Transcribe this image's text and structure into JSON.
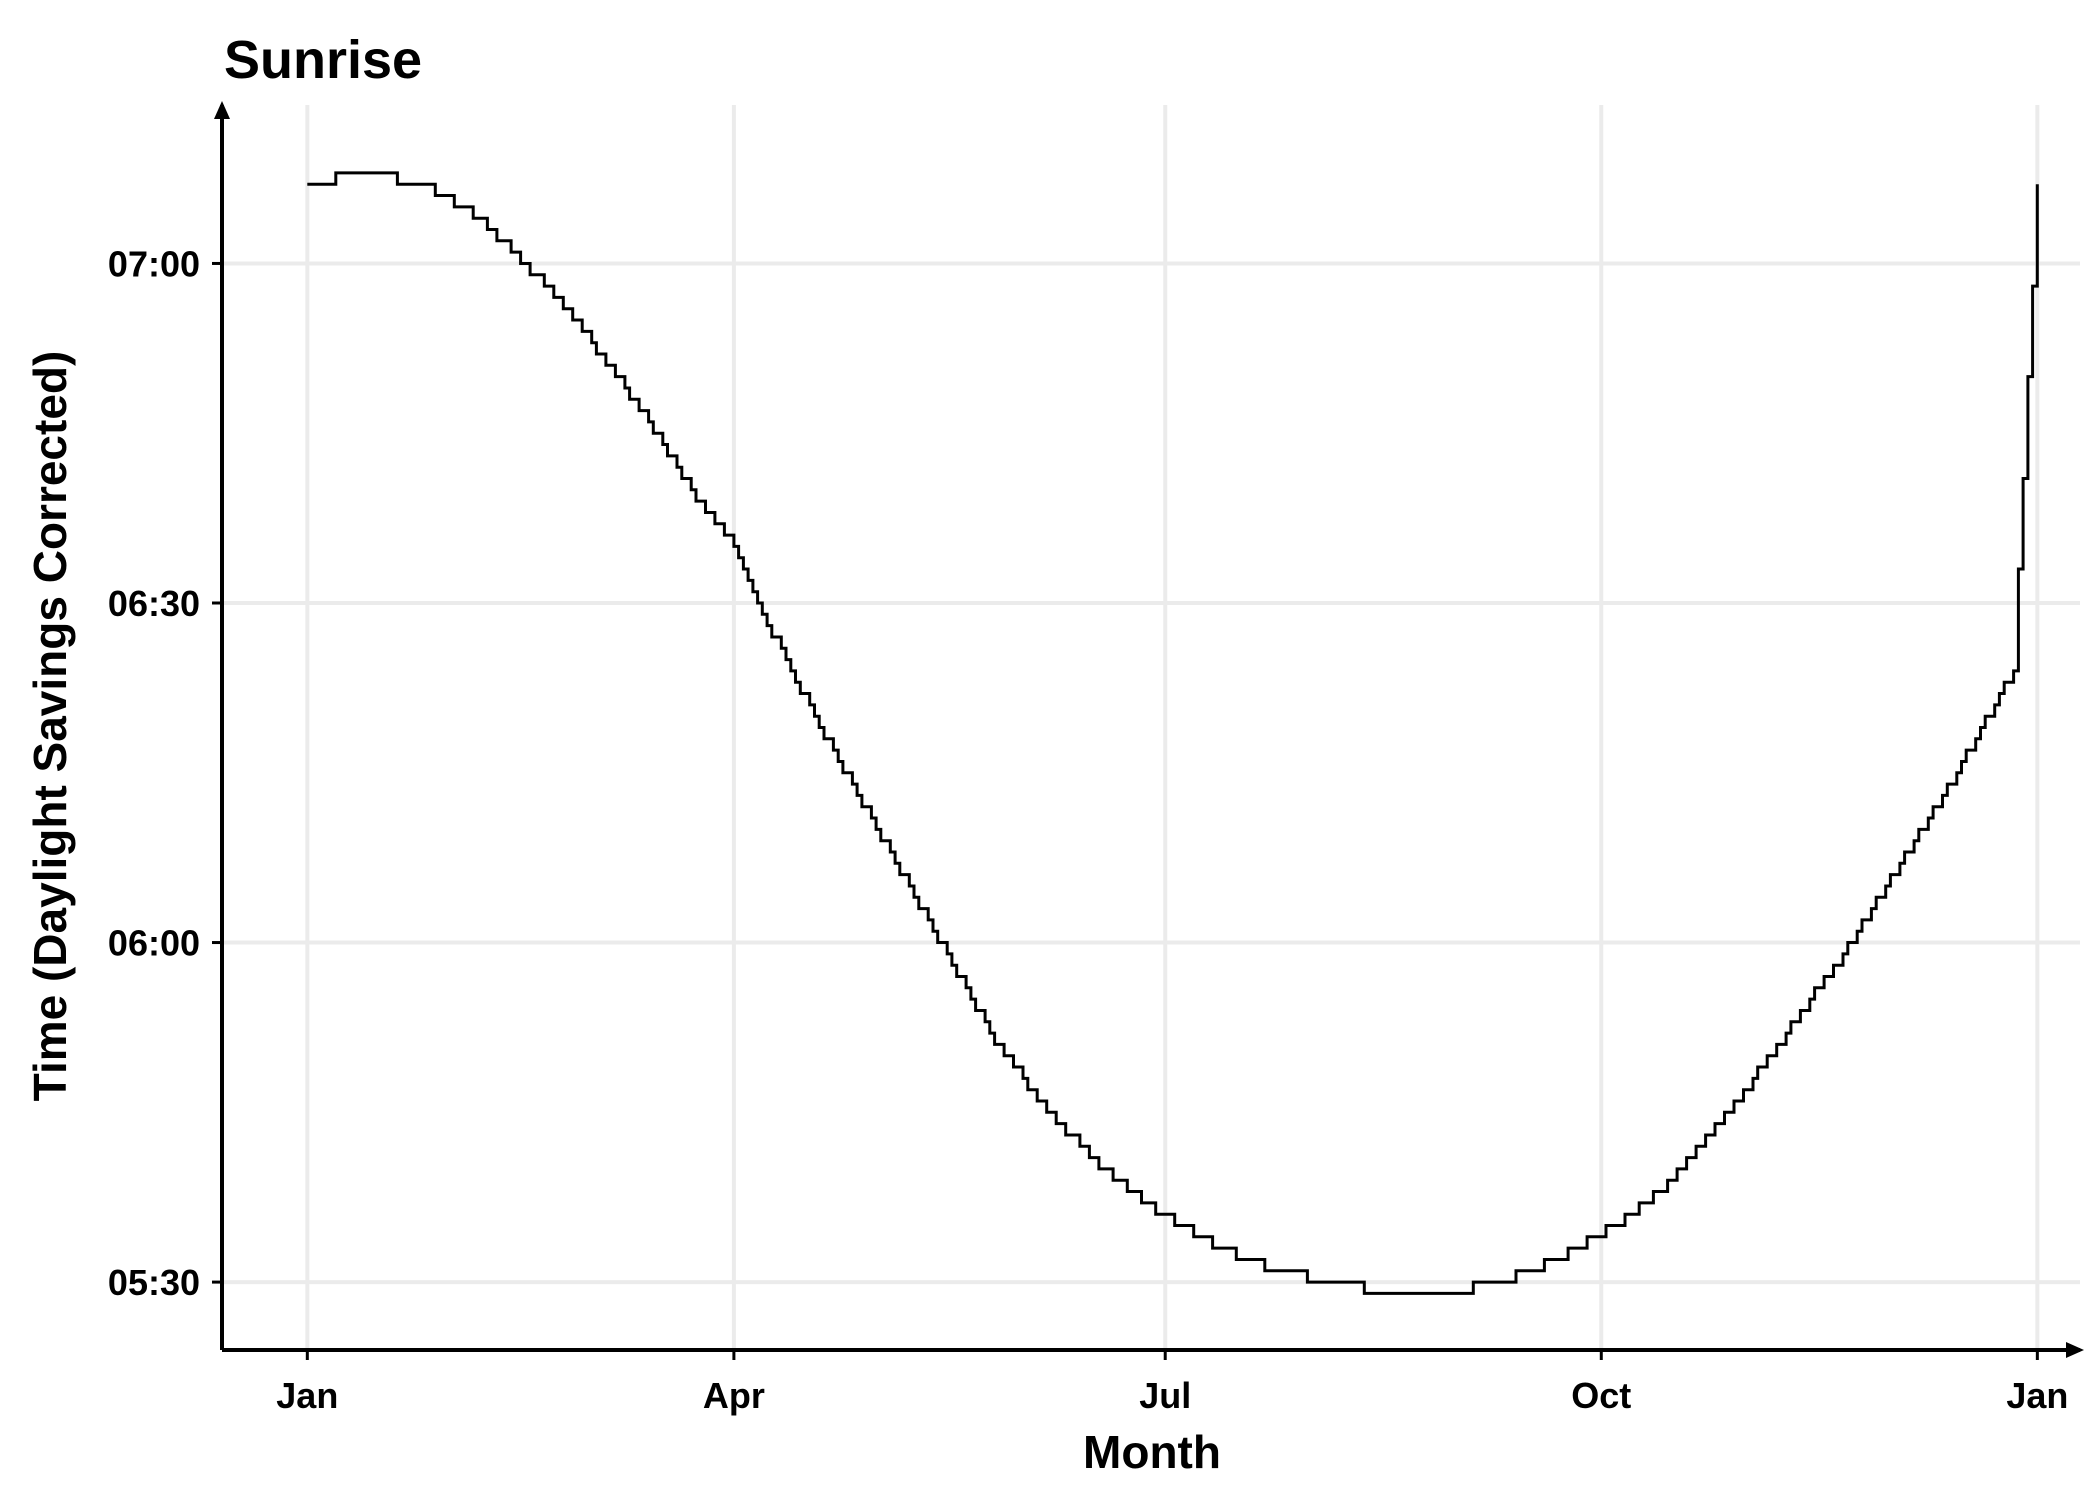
{
  "chart_data": {
    "type": "line",
    "title": "Sunrise",
    "xlabel": "Month",
    "ylabel": "Time (Daylight Savings Corrected)",
    "x_axis": {
      "ticks": [
        {
          "label": "Jan",
          "day": 0
        },
        {
          "label": "Apr",
          "day": 90
        },
        {
          "label": "Jul",
          "day": 181
        },
        {
          "label": "Oct",
          "day": 273
        },
        {
          "label": "Jan",
          "day": 365
        }
      ],
      "range_days": [
        -18,
        374
      ]
    },
    "y_axis": {
      "ticks": [
        {
          "label": "05:30",
          "minutes": 330
        },
        {
          "label": "06:00",
          "minutes": 360
        },
        {
          "label": "06:30",
          "minutes": 390
        },
        {
          "label": "07:00",
          "minutes": 420
        }
      ],
      "range_minutes": [
        324,
        434
      ]
    },
    "grid": true,
    "axis_arrows": true,
    "series": [
      {
        "points": [
          [
            0,
            427
          ],
          [
            12,
            428
          ],
          [
            24,
            427
          ],
          [
            36,
            424
          ],
          [
            48,
            419
          ],
          [
            60,
            413
          ],
          [
            72,
            406
          ],
          [
            75,
            404
          ],
          [
            84,
            398
          ],
          [
            90,
            395
          ],
          [
            96,
            389
          ],
          [
            108,
            379
          ],
          [
            120,
            370
          ],
          [
            132,
            361
          ],
          [
            144,
            352
          ],
          [
            156,
            345
          ],
          [
            168,
            340
          ],
          [
            180,
            336
          ],
          [
            192,
            333
          ],
          [
            204,
            331
          ],
          [
            216,
            330
          ],
          [
            228,
            329
          ],
          [
            240,
            329
          ],
          [
            252,
            330
          ],
          [
            264,
            332
          ],
          [
            276,
            335
          ],
          [
            288,
            339
          ],
          [
            300,
            345
          ],
          [
            312,
            352
          ],
          [
            324,
            359
          ],
          [
            336,
            367
          ],
          [
            348,
            375
          ],
          [
            356,
            381
          ],
          [
            360,
            384
          ],
          [
            365,
            427
          ]
        ],
        "smoothed_points_note": ""
      }
    ]
  }
}
